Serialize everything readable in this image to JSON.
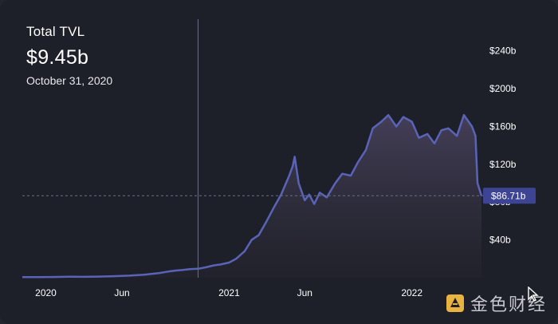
{
  "header": {
    "label": "Total TVL",
    "value": "$9.45b",
    "date": "October 31, 2020"
  },
  "price_tag": "$86.71b",
  "watermark": {
    "text": "金色财经",
    "icon": "jinse-logo-icon"
  },
  "colors": {
    "background": "#1e2029",
    "line": "#5a63b8",
    "area_top": "#46405a",
    "crosshair": "#6b6f80",
    "tag": "#3d4494",
    "watermark_logo": "#e8b341"
  },
  "chart_data": {
    "type": "area",
    "title": "Total TVL",
    "xlabel": "",
    "ylabel": "",
    "x_ticks": [
      "2020",
      "Jun",
      "2021",
      "Jun",
      "2022"
    ],
    "y_ticks": [
      "$40b",
      "$80b",
      "$120b",
      "$160b",
      "$200b",
      "$240b"
    ],
    "ylim": [
      0,
      260
    ],
    "grid": false,
    "hover": {
      "x": "2020-10-31",
      "y": 9.45
    },
    "last_value": 86.71,
    "series": [
      {
        "x": [
          "2019-11-15",
          "2019-12-15",
          "2020-01-15",
          "2020-02-15",
          "2020-03-15",
          "2020-04-15",
          "2020-05-15",
          "2020-06-15",
          "2020-07-15",
          "2020-08-15",
          "2020-09-01",
          "2020-09-15",
          "2020-10-01",
          "2020-10-15",
          "2020-10-31",
          "2020-11-15",
          "2020-12-01",
          "2020-12-15",
          "2021-01-01",
          "2021-01-15",
          "2021-02-01",
          "2021-02-15",
          "2021-03-01",
          "2021-03-15",
          "2021-04-01",
          "2021-04-15",
          "2021-05-01",
          "2021-05-08",
          "2021-05-12",
          "2021-05-20",
          "2021-06-01",
          "2021-06-10",
          "2021-06-20",
          "2021-07-01",
          "2021-07-15",
          "2021-08-01",
          "2021-08-15",
          "2021-09-01",
          "2021-09-15",
          "2021-10-01",
          "2021-10-15",
          "2021-11-01",
          "2021-11-15",
          "2021-12-01",
          "2021-12-15",
          "2022-01-01",
          "2022-01-15",
          "2022-02-01",
          "2022-02-15",
          "2022-03-01",
          "2022-03-15",
          "2022-04-01",
          "2022-04-15",
          "2022-05-01",
          "2022-05-08",
          "2022-05-12",
          "2022-05-20"
        ],
        "values": [
          0.6,
          0.7,
          0.8,
          1.0,
          0.9,
          1.2,
          1.6,
          2.2,
          3.2,
          5.0,
          6.5,
          7.5,
          8.3,
          9.0,
          9.45,
          11,
          13,
          14,
          16,
          20,
          28,
          40,
          45,
          58,
          75,
          88,
          108,
          118,
          128,
          100,
          82,
          88,
          78,
          90,
          85,
          100,
          110,
          108,
          122,
          135,
          158,
          165,
          172,
          160,
          170,
          165,
          148,
          152,
          142,
          156,
          158,
          150,
          172,
          160,
          150,
          100,
          86.71
        ]
      }
    ]
  }
}
